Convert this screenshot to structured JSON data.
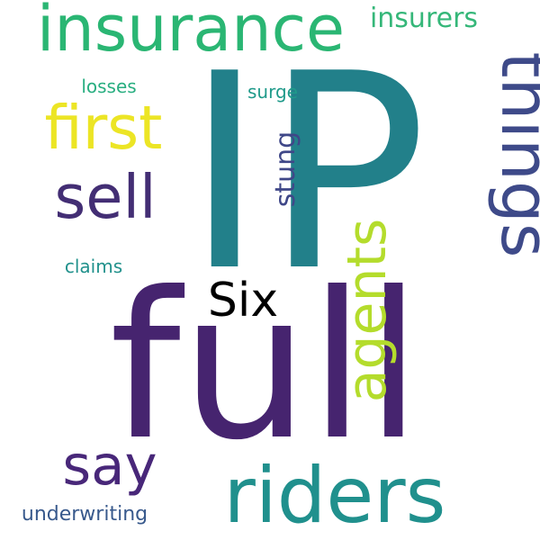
{
  "words": [
    {
      "key": "ip",
      "text": "IP",
      "color": "#22808a"
    },
    {
      "key": "full",
      "text": "full",
      "color": "#46246f"
    },
    {
      "key": "insurance",
      "text": "insurance",
      "color": "#2ab673"
    },
    {
      "key": "riders",
      "text": "riders",
      "color": "#20908d"
    },
    {
      "key": "things",
      "text": "things",
      "color": "#3e4a89"
    },
    {
      "key": "first",
      "text": "first",
      "color": "#ece525"
    },
    {
      "key": "sell",
      "text": "sell",
      "color": "#432e74"
    },
    {
      "key": "agents",
      "text": "agents",
      "color": "#b4dc2c"
    },
    {
      "key": "six",
      "text": "Six",
      "color": "#365d8d"
    },
    {
      "key": "say",
      "text": "say",
      "color": "#482779"
    },
    {
      "key": "insurers",
      "text": "insurers",
      "color": "#35b779"
    },
    {
      "key": "stung",
      "text": "stung",
      "color": "#3f4788"
    },
    {
      "key": "losses",
      "text": "losses",
      "color": "#28ae80"
    },
    {
      "key": "surge",
      "text": "surge",
      "color": "#1f9a8a"
    },
    {
      "key": "claims",
      "text": "claims",
      "color": "#21918c"
    },
    {
      "key": "underwriting",
      "text": "underwriting",
      "color": "#38598c"
    }
  ]
}
